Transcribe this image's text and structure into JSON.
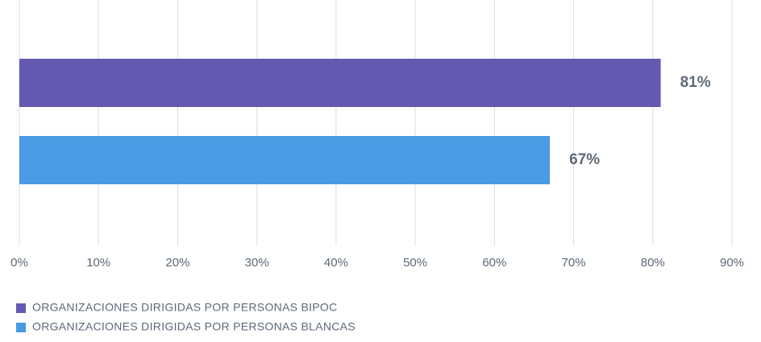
{
  "chart_data": {
    "type": "hbar",
    "categories": [
      null
    ],
    "series": [
      {
        "name": "ORGANIZACIONES DIRIGIDAS POR PERSONAS BIPOC",
        "color": "#6459b1",
        "values": [
          81
        ],
        "value_labels": [
          "81%"
        ]
      },
      {
        "name": "ORGANIZACIONES DIRIGIDAS POR PERSONAS BLANCAS",
        "color": "#4a9be3",
        "values": [
          67
        ],
        "value_labels": [
          "67%"
        ]
      }
    ],
    "xlim": [
      0,
      90
    ],
    "xticks": [
      {
        "value": 0,
        "label": "0%"
      },
      {
        "value": 10,
        "label": "10%"
      },
      {
        "value": 20,
        "label": "20%"
      },
      {
        "value": 30,
        "label": "30%"
      },
      {
        "value": 40,
        "label": "40%"
      },
      {
        "value": 50,
        "label": "50%"
      },
      {
        "value": 60,
        "label": "60%"
      },
      {
        "value": 70,
        "label": "70%"
      },
      {
        "value": 80,
        "label": "80%"
      },
      {
        "value": 90,
        "label": "90%"
      }
    ],
    "grid": true,
    "legend": "bottom-left"
  }
}
